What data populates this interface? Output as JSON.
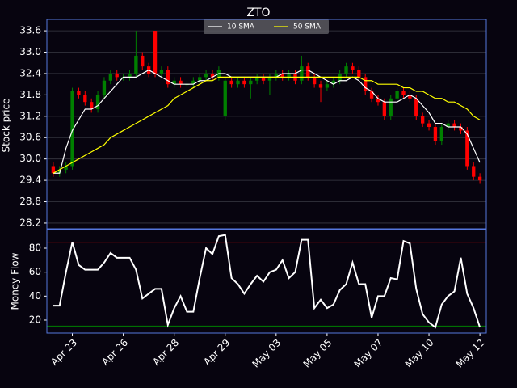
{
  "chart_data": [
    {
      "type": "candlestick",
      "title": "ZTO",
      "ylabel": "Stock price",
      "x": [
        -3,
        -2,
        -1,
        0,
        1,
        2,
        3,
        4,
        5,
        6,
        7,
        8,
        9,
        10,
        11,
        12,
        13,
        14,
        15,
        16,
        17,
        18,
        19,
        20,
        21,
        22,
        23,
        24,
        25,
        26,
        27,
        28,
        29,
        30,
        31,
        32,
        33,
        34,
        35,
        36,
        37,
        38,
        39,
        40,
        41,
        42,
        43,
        44,
        45,
        46,
        47,
        48,
        49,
        50,
        51,
        52,
        53,
        54,
        55,
        56,
        57,
        58,
        59,
        60,
        61,
        62,
        63,
        64
      ],
      "open": [
        29.8,
        29.6,
        29.7,
        29.8,
        31.9,
        31.8,
        31.6,
        31.4,
        31.8,
        32.2,
        32.4,
        32.3,
        32.3,
        32.4,
        32.9,
        32.6,
        33.6,
        32.4,
        32.5,
        32.1,
        32.2,
        32.1,
        32.1,
        32.2,
        32.3,
        32.4,
        32.3,
        31.2,
        32.2,
        32.1,
        32.2,
        32.1,
        32.2,
        32.3,
        32.2,
        32.3,
        32.4,
        32.3,
        32.4,
        32.2,
        32.6,
        32.3,
        32.1,
        32.0,
        32.1,
        32.2,
        32.4,
        32.6,
        32.5,
        32.3,
        31.9,
        31.7,
        31.6,
        31.2,
        31.7,
        31.9,
        31.8,
        31.7,
        31.2,
        31.0,
        30.9,
        30.5,
        30.9,
        31.0,
        30.9,
        30.8,
        29.8,
        29.5
      ],
      "high": [
        29.9,
        29.8,
        29.9,
        32.0,
        32.0,
        31.9,
        31.7,
        31.9,
        32.3,
        32.5,
        32.5,
        32.4,
        32.5,
        33.6,
        33.0,
        32.7,
        33.6,
        32.6,
        32.6,
        32.3,
        32.3,
        32.2,
        32.3,
        32.4,
        32.5,
        32.5,
        32.6,
        32.3,
        32.3,
        32.3,
        32.3,
        32.3,
        32.4,
        32.4,
        32.4,
        32.5,
        32.5,
        32.5,
        32.5,
        32.9,
        32.7,
        32.4,
        32.2,
        32.2,
        32.3,
        32.5,
        32.7,
        32.7,
        32.6,
        32.4,
        32.0,
        31.8,
        31.7,
        31.8,
        32.0,
        32.0,
        31.9,
        31.8,
        31.3,
        31.1,
        31.0,
        31.0,
        31.1,
        31.1,
        31.0,
        30.9,
        29.9,
        29.6
      ],
      "low": [
        29.5,
        29.5,
        29.6,
        29.7,
        31.7,
        31.5,
        31.3,
        31.3,
        31.7,
        32.1,
        32.2,
        32.2,
        32.2,
        32.3,
        32.5,
        32.3,
        32.3,
        32.3,
        32.0,
        32.0,
        32.0,
        32.0,
        32.0,
        32.1,
        32.2,
        32.2,
        32.2,
        31.1,
        32.0,
        32.0,
        32.0,
        31.7,
        32.1,
        32.1,
        31.8,
        32.2,
        32.2,
        32.2,
        32.1,
        32.1,
        32.2,
        32.0,
        31.6,
        31.9,
        32.0,
        32.1,
        32.3,
        32.4,
        32.2,
        31.8,
        31.6,
        31.5,
        31.1,
        31.1,
        31.6,
        31.7,
        31.6,
        31.1,
        30.9,
        30.8,
        30.4,
        30.4,
        30.8,
        30.8,
        30.7,
        29.7,
        29.4,
        29.3
      ],
      "close": [
        29.6,
        29.7,
        29.8,
        31.9,
        31.8,
        31.6,
        31.4,
        31.8,
        32.2,
        32.4,
        32.3,
        32.3,
        32.4,
        32.9,
        32.6,
        32.4,
        32.4,
        32.5,
        32.1,
        32.2,
        32.1,
        32.1,
        32.2,
        32.3,
        32.4,
        32.3,
        32.5,
        32.2,
        32.1,
        32.2,
        32.1,
        32.2,
        32.3,
        32.2,
        32.3,
        32.4,
        32.3,
        32.4,
        32.2,
        32.6,
        32.3,
        32.1,
        32.0,
        32.1,
        32.2,
        32.4,
        32.6,
        32.5,
        32.3,
        31.9,
        31.7,
        31.6,
        31.2,
        31.7,
        31.9,
        31.8,
        31.7,
        31.2,
        31.0,
        30.9,
        30.5,
        30.9,
        31.0,
        30.9,
        30.8,
        29.8,
        29.5,
        29.4
      ],
      "up_color": "#008000",
      "down_color": "#ff0000",
      "series": [
        {
          "name": "10 SMA",
          "color": "#ffffff",
          "values": [
            29.6,
            29.6,
            30.3,
            30.8,
            31.1,
            31.4,
            31.4,
            31.5,
            31.7,
            31.9,
            32.1,
            32.3,
            32.3,
            32.3,
            32.4,
            32.5,
            32.4,
            32.3,
            32.2,
            32.1,
            32.1,
            32.1,
            32.1,
            32.2,
            32.2,
            32.3,
            32.4,
            32.4,
            32.3,
            32.3,
            32.3,
            32.3,
            32.3,
            32.3,
            32.3,
            32.3,
            32.4,
            32.4,
            32.4,
            32.5,
            32.5,
            32.4,
            32.3,
            32.2,
            32.1,
            32.2,
            32.2,
            32.3,
            32.2,
            32.0,
            31.9,
            31.7,
            31.6,
            31.6,
            31.6,
            31.7,
            31.8,
            31.7,
            31.5,
            31.3,
            31.0,
            31.0,
            30.9,
            30.9,
            30.9,
            30.7,
            30.3,
            29.9
          ]
        },
        {
          "name": "50 SMA",
          "color": "#ffff00",
          "values": [
            29.6,
            29.7,
            29.8,
            29.9,
            30.0,
            30.1,
            30.2,
            30.3,
            30.4,
            30.6,
            30.7,
            30.8,
            30.9,
            31.0,
            31.1,
            31.2,
            31.3,
            31.4,
            31.5,
            31.7,
            31.8,
            31.9,
            32.0,
            32.1,
            32.2,
            32.2,
            32.3,
            32.3,
            32.3,
            32.3,
            32.3,
            32.3,
            32.3,
            32.3,
            32.3,
            32.3,
            32.3,
            32.3,
            32.3,
            32.3,
            32.3,
            32.3,
            32.3,
            32.3,
            32.3,
            32.3,
            32.3,
            32.3,
            32.3,
            32.2,
            32.2,
            32.1,
            32.1,
            32.1,
            32.1,
            32.0,
            32.0,
            31.9,
            31.9,
            31.8,
            31.7,
            31.7,
            31.6,
            31.6,
            31.5,
            31.4,
            31.2,
            31.1
          ]
        }
      ],
      "xlim": [
        -4,
        65
      ],
      "ylim": [
        28.04,
        33.92
      ],
      "yticks": [
        {
          "value": 28.2,
          "label": "28.2"
        },
        28.8,
        29.4,
        {
          "value": 30,
          "label": "30.0"
        },
        30.6,
        31.2,
        31.8,
        32.4,
        {
          "value": 33,
          "label": "33.0"
        },
        33.6
      ],
      "grid": true,
      "legend": "upper center"
    },
    {
      "type": "line",
      "ylabel": "Money Flow",
      "x": [
        -3,
        -2,
        -1,
        0,
        1,
        2,
        3,
        4,
        5,
        6,
        7,
        8,
        9,
        10,
        11,
        12,
        13,
        14,
        15,
        16,
        17,
        18,
        19,
        20,
        21,
        22,
        23,
        24,
        25,
        26,
        27,
        28,
        29,
        30,
        31,
        32,
        33,
        34,
        35,
        36,
        37,
        38,
        39,
        40,
        41,
        42,
        43,
        44,
        45,
        46,
        47,
        48,
        49,
        50,
        51,
        52,
        53,
        54,
        55,
        56,
        57,
        58,
        59,
        60,
        61,
        62,
        63,
        64
      ],
      "values": [
        32,
        32,
        60,
        85,
        66,
        62,
        62,
        62,
        68,
        76,
        72,
        72,
        72,
        62,
        38,
        42,
        46,
        46,
        16,
        30,
        40,
        27,
        27,
        55,
        80,
        75,
        90,
        91,
        55,
        50,
        42,
        50,
        57,
        52,
        60,
        62,
        70,
        55,
        60,
        87,
        87,
        30,
        37,
        30,
        33,
        45,
        50,
        68,
        50,
        50,
        22,
        40,
        40,
        55,
        54,
        86,
        84,
        46,
        25,
        18,
        14,
        33,
        40,
        44,
        72,
        42,
        30,
        14
      ],
      "color": "#ffffff",
      "hlines": [
        {
          "value": 85,
          "color": "#ff0000"
        },
        {
          "value": 15,
          "color": "#008000"
        }
      ],
      "xlim": [
        -4,
        65
      ],
      "ylim": [
        9.2,
        95.5
      ],
      "yticks": [
        20,
        40,
        60,
        80
      ],
      "xticks": [
        {
          "value": 0,
          "label": "Apr 23"
        },
        {
          "value": 8,
          "label": "Apr 26"
        },
        {
          "value": 16,
          "label": "Apr 28"
        },
        {
          "value": 24,
          "label": "Apr 29"
        },
        {
          "value": 32,
          "label": "May 03"
        },
        {
          "value": 40,
          "label": "May 05"
        },
        {
          "value": 48,
          "label": "May 07"
        },
        {
          "value": 56,
          "label": "May 10"
        },
        {
          "value": 64,
          "label": "May 12"
        }
      ]
    }
  ]
}
